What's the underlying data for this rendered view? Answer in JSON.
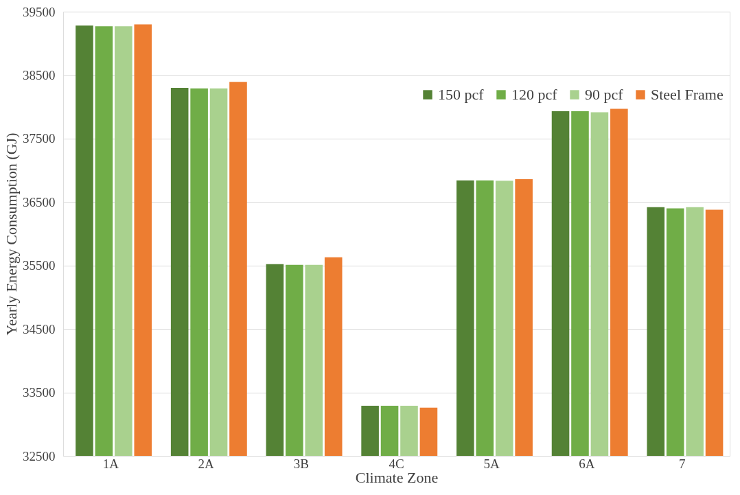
{
  "chart_data": {
    "type": "bar",
    "xlabel": "Climate Zone",
    "ylabel": "Yearly Energy Consumption (GJ)",
    "categories": [
      "1A",
      "2A",
      "3B",
      "4C",
      "5A",
      "6A",
      "7"
    ],
    "series": [
      {
        "name": "150 pcf",
        "color": "#548235",
        "values": [
          39280,
          38300,
          35520,
          33290,
          36840,
          37930,
          36420
        ]
      },
      {
        "name": "120 pcf",
        "color": "#70ad47",
        "values": [
          39270,
          38290,
          35510,
          33290,
          36840,
          37930,
          36400
        ]
      },
      {
        "name": "90 pcf",
        "color": "#a9d18e",
        "values": [
          39270,
          38290,
          35510,
          33290,
          36835,
          37915,
          36420
        ]
      },
      {
        "name": "Steel Frame",
        "color": "#ed7d31",
        "values": [
          39300,
          38395,
          35630,
          33260,
          36860,
          37970,
          36380
        ]
      }
    ],
    "ylim": [
      32500,
      39500
    ],
    "yticks": [
      32500,
      33500,
      34500,
      35500,
      36500,
      37500,
      38500,
      39500
    ],
    "grid": "y",
    "legend": "top right"
  }
}
